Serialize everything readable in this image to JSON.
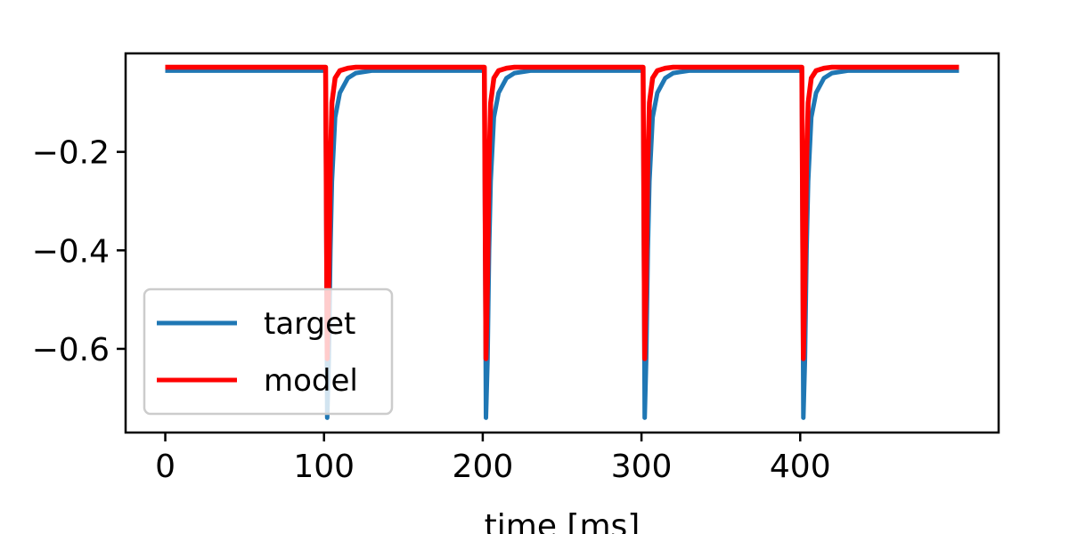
{
  "chart_data": {
    "type": "line",
    "title": "",
    "xlabel": "time [ms]",
    "ylabel": "",
    "xlim": [
      -25,
      525
    ],
    "ylim": [
      -0.77,
      0.0
    ],
    "xticks": [
      0,
      100,
      200,
      300,
      400
    ],
    "xtick_labels": [
      "0",
      "100",
      "200",
      "300",
      "400"
    ],
    "yticks": [
      -0.2,
      -0.4,
      -0.6
    ],
    "ytick_labels": [
      "−0.2",
      "−0.4",
      "−0.6"
    ],
    "grid": false,
    "legend_position": "lower-left",
    "x": [
      0,
      100,
      101,
      102,
      103,
      104,
      105,
      107,
      110,
      115,
      120,
      130,
      200,
      201,
      202,
      203,
      204,
      205,
      207,
      210,
      215,
      220,
      230,
      300,
      301,
      302,
      303,
      304,
      305,
      307,
      310,
      315,
      320,
      330,
      400,
      401,
      402,
      403,
      404,
      405,
      407,
      410,
      415,
      420,
      430,
      500
    ],
    "series": [
      {
        "name": "target",
        "color": "#1f77b4",
        "values": [
          -0.035,
          -0.035,
          -0.035,
          -0.74,
          -0.62,
          -0.4,
          -0.26,
          -0.13,
          -0.08,
          -0.05,
          -0.04,
          -0.035,
          -0.035,
          -0.035,
          -0.74,
          -0.62,
          -0.4,
          -0.26,
          -0.13,
          -0.08,
          -0.05,
          -0.04,
          -0.035,
          -0.035,
          -0.035,
          -0.74,
          -0.62,
          -0.4,
          -0.26,
          -0.13,
          -0.08,
          -0.05,
          -0.04,
          -0.035,
          -0.035,
          -0.035,
          -0.74,
          -0.62,
          -0.4,
          -0.26,
          -0.13,
          -0.08,
          -0.05,
          -0.04,
          -0.035,
          -0.035
        ]
      },
      {
        "name": "model",
        "color": "#ff0000",
        "values": [
          -0.028,
          -0.028,
          -0.028,
          -0.62,
          -0.46,
          -0.22,
          -0.1,
          -0.05,
          -0.035,
          -0.03,
          -0.028,
          -0.028,
          -0.028,
          -0.028,
          -0.62,
          -0.46,
          -0.22,
          -0.1,
          -0.05,
          -0.035,
          -0.03,
          -0.028,
          -0.028,
          -0.028,
          -0.028,
          -0.62,
          -0.46,
          -0.22,
          -0.1,
          -0.05,
          -0.035,
          -0.03,
          -0.028,
          -0.028,
          -0.028,
          -0.028,
          -0.62,
          -0.46,
          -0.22,
          -0.1,
          -0.05,
          -0.035,
          -0.03,
          -0.028,
          -0.028,
          -0.028
        ]
      }
    ]
  }
}
